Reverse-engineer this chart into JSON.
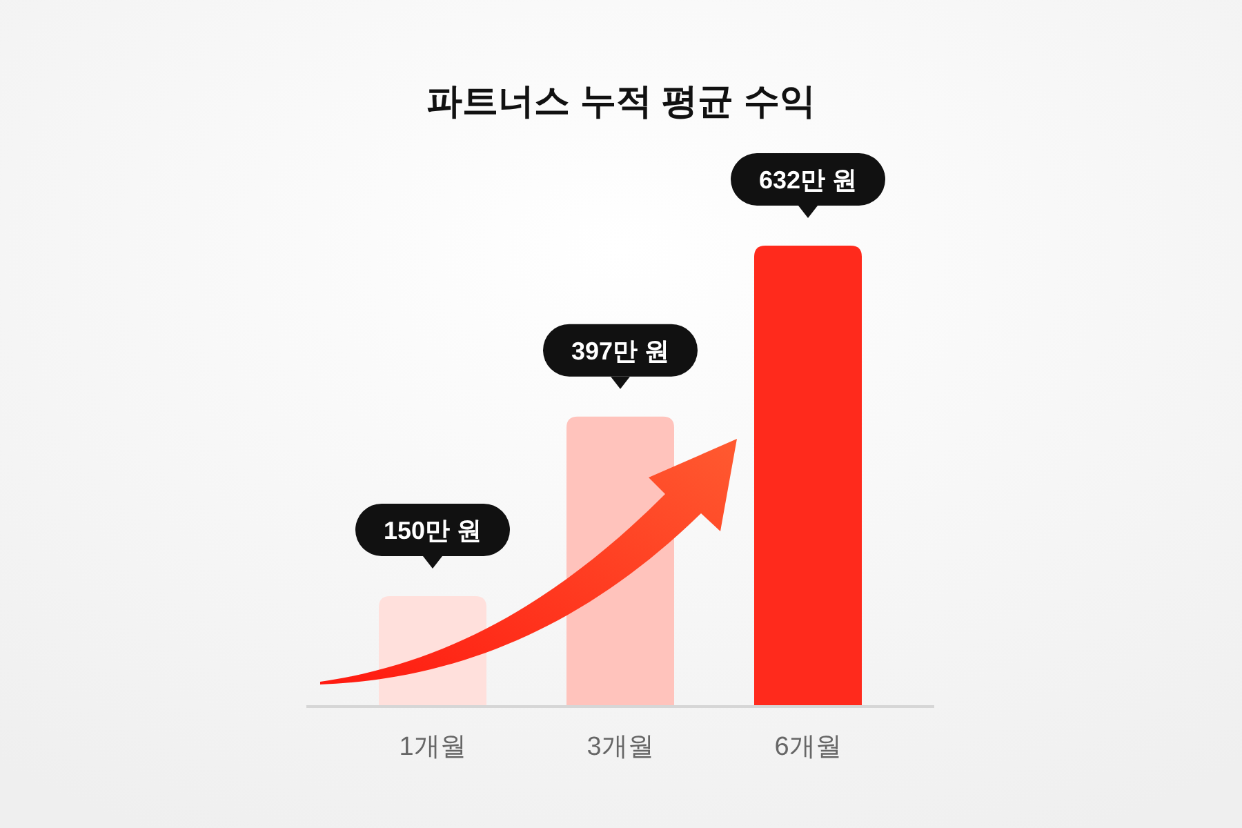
{
  "chart_data": {
    "type": "bar",
    "title": "파트너스 누적 평균 수익",
    "categories": [
      "1개월",
      "3개월",
      "6개월"
    ],
    "values": [
      150,
      397,
      632
    ],
    "colors": [
      "#ffe0dc",
      "#ffc3bc",
      "#ff2a1c"
    ],
    "value_labels": [
      "150만 원",
      "397만 원",
      "632만 원"
    ]
  }
}
